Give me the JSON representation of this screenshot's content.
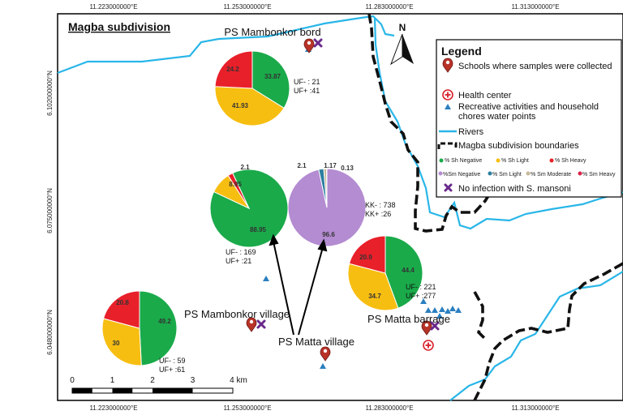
{
  "title": "Magba subdivision",
  "north_label": "N",
  "grid": {
    "lon_labels": [
      "11.223000000°E",
      "11.253000000°E",
      "11.283000000°E",
      "11.313000000°E"
    ],
    "lat_labels": [
      "6.102000000°N",
      "6.075000000°N",
      "6.048000000°N"
    ]
  },
  "scale_bar": {
    "ticks": [
      "0",
      "1",
      "2",
      "3",
      "4 km"
    ]
  },
  "places": [
    {
      "id": "bord",
      "label": "PS Mambonkor bord"
    },
    {
      "id": "village",
      "label": "PS Mambonkor village"
    },
    {
      "id": "matta",
      "label": "PS Matta village"
    },
    {
      "id": "barrage",
      "label": "PS Matta barrage"
    }
  ],
  "counts": {
    "bord_uf_minus": "UF- : 21",
    "bord_uf_plus": "UF+ :41",
    "village_uf_minus": "UF- : 59",
    "village_uf_plus": "UF+ :61",
    "matta_uf_minus": "UF- : 169",
    "matta_uf_plus": "UF+ :21",
    "matta_kk_minus": "KK- : 738",
    "matta_kk_plus": "KK+ :26",
    "barrage_uf_minus": "UF- : 221",
    "barrage_uf_plus": "UF+ :277"
  },
  "colors": {
    "sh_negative": "#1aaa4a",
    "sh_light": "#f7be12",
    "sh_heavy": "#e8202a",
    "sm_negative": "#b48cd2",
    "sm_light": "#2c7fa0",
    "sm_moderate": "#c8b99a",
    "sm_heavy": "#d8264a",
    "river": "#29b6e8",
    "boundary": "#111111",
    "water_point": "#2a7fc0",
    "no_infection": "#6a2a8c",
    "school_pin": "#b83228"
  },
  "pies": [
    {
      "id": "bord",
      "values": [
        33.87,
        41.93,
        24.2
      ],
      "labels": [
        "33.87",
        "41.93",
        "24.2"
      ],
      "colors": [
        "sh_negative",
        "sh_light",
        "sh_heavy"
      ]
    },
    {
      "id": "village",
      "values": [
        49.2,
        30,
        20.8
      ],
      "labels": [
        "49.2",
        "30",
        "20.8"
      ],
      "colors": [
        "sh_negative",
        "sh_light",
        "sh_heavy"
      ]
    },
    {
      "id": "matta_sh",
      "values": [
        88.95,
        8.95,
        2.1
      ],
      "labels": [
        "88.95",
        "8.95",
        "2.1"
      ],
      "colors": [
        "sh_negative",
        "sh_light",
        "sh_heavy"
      ]
    },
    {
      "id": "matta_sm",
      "values": [
        96.6,
        2.1,
        1.17,
        0.13
      ],
      "labels": [
        "96.6",
        "2.1",
        "1.17",
        "0.13"
      ],
      "colors": [
        "sm_negative",
        "sm_light",
        "sm_moderate",
        "sm_heavy"
      ]
    },
    {
      "id": "barrage",
      "values": [
        44.4,
        34.7,
        20.9
      ],
      "labels": [
        "44.4",
        "34.7",
        "20.9"
      ],
      "colors": [
        "sh_negative",
        "sh_light",
        "sh_heavy"
      ]
    }
  ],
  "legend": {
    "title": "Legend",
    "schools": "Schools where samples were collected",
    "health": "Health center",
    "water_points": "Recreative activities and household chores water  points",
    "rivers": "Rivers",
    "boundaries": "Magba subdivision boundaries",
    "sh_negative": "% Sh Negative",
    "sh_light": "% Sh Light",
    "sh_heavy": "% Sh Heavy",
    "sm_negative": "%Sm Negative",
    "sm_light": "% Sm Light",
    "sm_moderate": "% Sm Moderate",
    "sm_heavy": "% Sm Heavy",
    "no_infection": "No infection with S. mansoni"
  }
}
